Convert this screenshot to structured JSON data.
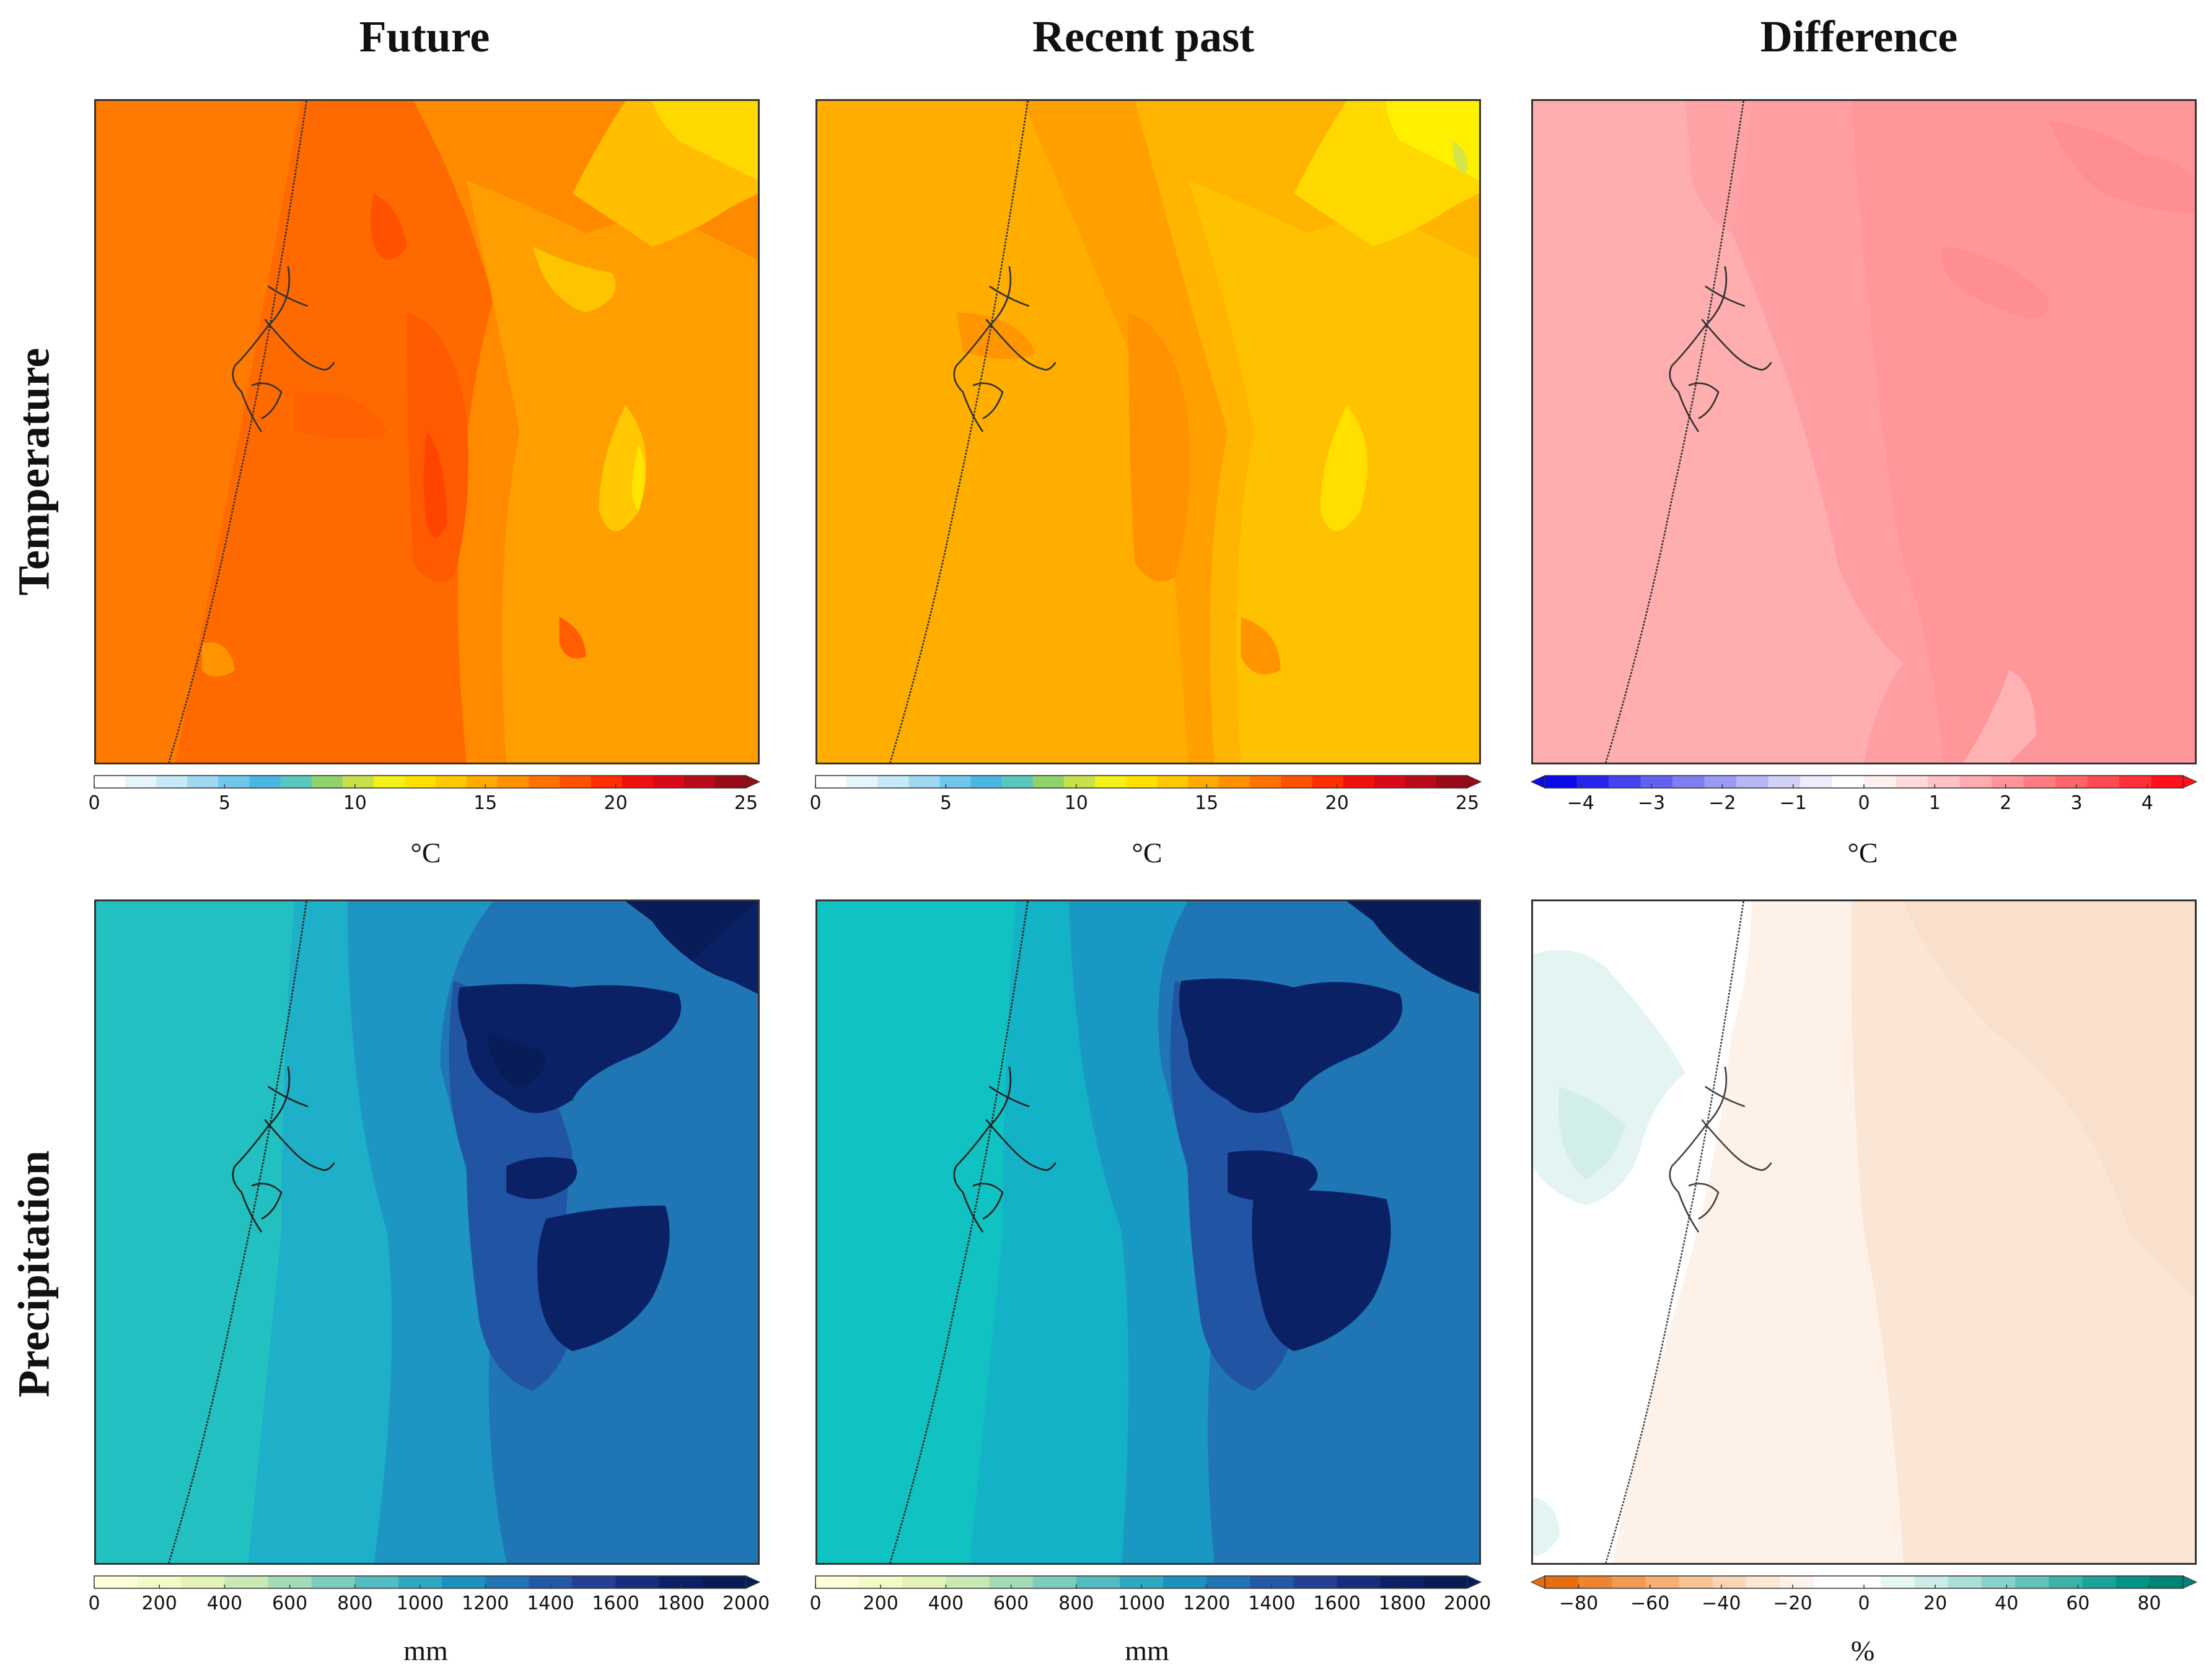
{
  "columns": [
    "Future",
    "Recent past",
    "Difference"
  ],
  "rows": [
    "Temperature",
    "Precipitation"
  ],
  "units": {
    "temperature": "°C",
    "precipitation": "mm",
    "precip_difference": "%"
  },
  "colorbars": {
    "temp": {
      "ticks": [
        "0",
        "5",
        "10",
        "15",
        "20",
        "25"
      ],
      "colors": [
        "#ffffff",
        "#e6f4fb",
        "#c6e9f7",
        "#9fd8f0",
        "#6fc8eb",
        "#4ab7e2",
        "#59c6c0",
        "#8fd16b",
        "#c8e04a",
        "#f4f01a",
        "#ffe100",
        "#ffc800",
        "#ffaa00",
        "#ff9000",
        "#ff7200",
        "#ff5200",
        "#ff2e00",
        "#f0100e",
        "#d80a18",
        "#b80a18",
        "#980a16"
      ]
    },
    "temp_diff": {
      "ticks": [
        "−4",
        "−3",
        "−2",
        "−1",
        "0",
        "1",
        "2",
        "3",
        "4"
      ],
      "colors": [
        "#0a0ae8",
        "#2525ec",
        "#4444ee",
        "#6262ef",
        "#7e7ef0",
        "#9a9af2",
        "#b6b6f4",
        "#d2d2f7",
        "#ececfb",
        "#ffffff",
        "#fff0f0",
        "#ffdada",
        "#ffc2c4",
        "#ffaaae",
        "#ff9498",
        "#ff7c82",
        "#ff646a",
        "#ff4c52",
        "#ff3038",
        "#ff101a"
      ]
    },
    "precip": {
      "ticks": [
        "0",
        "200",
        "400",
        "600",
        "800",
        "1000",
        "1200",
        "1400",
        "1600",
        "1800",
        "2000"
      ],
      "colors": [
        "#ffffd9",
        "#f4f9c8",
        "#e3f3b5",
        "#c9e9b4",
        "#a3dbb7",
        "#7ccdbb",
        "#52bcc2",
        "#2ea9c2",
        "#1d91c0",
        "#2076b4",
        "#2258a6",
        "#233f96",
        "#172e7e",
        "#0b2166",
        "#081d58"
      ]
    },
    "precip_diff": {
      "ticks": [
        "−80",
        "−60",
        "−40",
        "−20",
        "0",
        "20",
        "40",
        "60",
        "80"
      ],
      "colors": [
        "#e86c10",
        "#ee8430",
        "#f29a52",
        "#f6b074",
        "#f8c496",
        "#fad6b6",
        "#fce6d4",
        "#fef2ea",
        "#ffffff",
        "#ffffff",
        "#e6f6f4",
        "#ccece8",
        "#aadfda",
        "#88d2cb",
        "#62c3bb",
        "#3cb3aa",
        "#1aa398",
        "#009488",
        "#008478"
      ]
    }
  },
  "panels": [
    {
      "id": "temp-future",
      "base": "#ff7a00",
      "coast": "#333333"
    },
    {
      "id": "temp-past",
      "base": "#ffae00",
      "coast": "#333333"
    },
    {
      "id": "temp-diff",
      "base": "#ffaeb0",
      "coast": "#333333"
    },
    {
      "id": "precip-future",
      "base": "#22c0c0",
      "coast": "#222222"
    },
    {
      "id": "precip-past",
      "base": "#10c2c2",
      "coast": "#222222"
    },
    {
      "id": "precip-diff",
      "base": "#fff6f0",
      "coast": "#444444"
    }
  ]
}
